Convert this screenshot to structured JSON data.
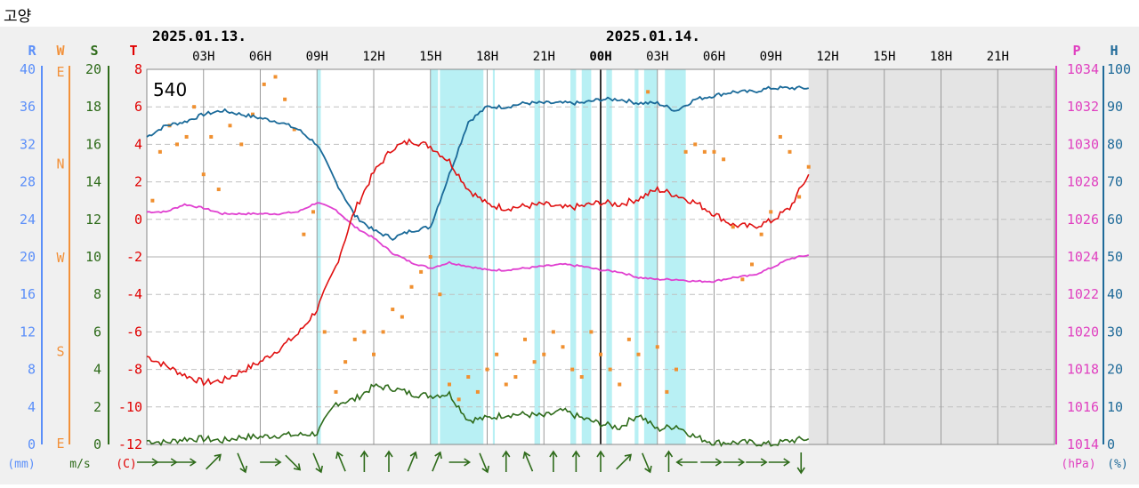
{
  "station": "고양",
  "plot_id": "540",
  "dates": [
    {
      "label": "2025.01.13.",
      "hour_index": 0
    },
    {
      "label": "2025.01.14.",
      "hour_index": 24
    }
  ],
  "axis_headers": {
    "R": {
      "letter": "R",
      "unit": "(mm)",
      "color": "#5b8ff9"
    },
    "W": {
      "letter": "W",
      "unit": "",
      "color": "#f2913a"
    },
    "S": {
      "letter": "S",
      "unit": "m/s",
      "color": "#2e6b1a"
    },
    "T": {
      "letter": "T",
      "unit": "(C)",
      "color": "#e00000"
    },
    "P": {
      "letter": "P",
      "unit": "(hPa)",
      "color": "#e040c0"
    },
    "H": {
      "letter": "H",
      "unit": "(%)",
      "color": "#1f6a99"
    }
  },
  "colors": {
    "temperature": "#e01010",
    "pressure": "#e040d0",
    "humidity": "#1a6a99",
    "wind_speed": "#2e6b1a",
    "wind_dir": "#f09030",
    "precip": "#b8f0f4",
    "grid": "#9a9a9a",
    "future": "#e4e4e4"
  },
  "chart_data": {
    "type": "line",
    "x_hour_ticks": [
      "03H",
      "06H",
      "09H",
      "12H",
      "15H",
      "18H",
      "21H",
      "00H",
      "03H",
      "06H",
      "09H",
      "12H",
      "15H",
      "18H",
      "21H"
    ],
    "x_range_hours": [
      0,
      48
    ],
    "data_end_hour": 35,
    "axes": {
      "R": {
        "ticks": [
          "40",
          "36",
          "32",
          "28",
          "24",
          "20",
          "16",
          "12",
          "8",
          "4",
          "0"
        ],
        "ylim": [
          0,
          40
        ]
      },
      "W": {
        "ticks": [
          "E",
          "N",
          "W",
          "S",
          "E"
        ]
      },
      "S": {
        "ticks": [
          "20",
          "18",
          "16",
          "14",
          "12",
          "10",
          "8",
          "6",
          "4",
          "2",
          "0"
        ],
        "ylim": [
          0,
          20
        ]
      },
      "T": {
        "ticks": [
          "8",
          "6",
          "4",
          "2",
          "0",
          "-2",
          "-4",
          "-6",
          "-8",
          "-10",
          "-12"
        ],
        "ylim": [
          -12,
          8
        ]
      },
      "P": {
        "ticks": [
          "1034",
          "1032",
          "1030",
          "1028",
          "1026",
          "1024",
          "1022",
          "1020",
          "1018",
          "1016",
          "1014"
        ],
        "ylim": [
          1014,
          1034
        ]
      },
      "H": {
        "ticks": [
          "100",
          "90",
          "80",
          "70",
          "60",
          "50",
          "40",
          "30",
          "20",
          "10",
          "0"
        ],
        "ylim": [
          0,
          100
        ]
      }
    },
    "series": [
      {
        "key": "temperature",
        "axis": "T",
        "x": [
          0,
          1,
          2,
          3,
          4,
          5,
          6,
          7,
          8,
          9,
          10,
          11,
          12,
          13,
          14,
          15,
          16,
          17,
          18,
          19,
          20,
          21,
          22,
          23,
          24,
          25,
          26,
          27,
          28,
          29,
          30,
          31,
          32,
          33,
          34,
          35
        ],
        "y": [
          -7.3,
          -7.8,
          -8.3,
          -8.7,
          -8.6,
          -8.1,
          -7.6,
          -6.9,
          -6.1,
          -4.8,
          -2.5,
          0.5,
          2.5,
          3.8,
          4.2,
          3.9,
          3.1,
          1.6,
          0.8,
          0.6,
          0.7,
          0.8,
          0.6,
          0.7,
          0.9,
          0.8,
          1.1,
          1.6,
          1.3,
          0.9,
          0.3,
          -0.3,
          -0.4,
          -0.1,
          0.6,
          2.4
        ]
      },
      {
        "key": "pressure",
        "axis": "P",
        "x": [
          0,
          1,
          2,
          3,
          4,
          5,
          6,
          7,
          8,
          9,
          10,
          11,
          12,
          13,
          14,
          15,
          16,
          17,
          18,
          19,
          20,
          21,
          22,
          23,
          24,
          25,
          26,
          27,
          28,
          29,
          30,
          31,
          32,
          33,
          34,
          35
        ],
        "y": [
          1026.4,
          1026.4,
          1026.8,
          1026.6,
          1026.3,
          1026.3,
          1026.3,
          1026.3,
          1026.4,
          1026.9,
          1026.5,
          1025.6,
          1025.0,
          1024.2,
          1023.7,
          1023.4,
          1023.7,
          1023.5,
          1023.3,
          1023.3,
          1023.4,
          1023.5,
          1023.6,
          1023.5,
          1023.3,
          1023.2,
          1022.9,
          1022.8,
          1022.8,
          1022.7,
          1022.7,
          1022.9,
          1023.0,
          1023.4,
          1023.9,
          1024.1
        ]
      },
      {
        "key": "humidity",
        "axis": "H",
        "x": [
          0,
          1,
          2,
          3,
          4,
          5,
          6,
          7,
          8,
          9,
          10,
          11,
          12,
          13,
          14,
          15,
          16,
          17,
          18,
          19,
          20,
          21,
          22,
          23,
          24,
          25,
          26,
          27,
          28,
          29,
          30,
          31,
          32,
          33,
          34,
          35
        ],
        "y": [
          82,
          85,
          86,
          88,
          89,
          88,
          87,
          86,
          84,
          80,
          70,
          61,
          57,
          55,
          57,
          58,
          72,
          86,
          90,
          90,
          91,
          91,
          91,
          91,
          92,
          92,
          91,
          91,
          89,
          92,
          93,
          94,
          94,
          95,
          95,
          95
        ]
      },
      {
        "key": "wind_speed",
        "axis": "S",
        "x": [
          0,
          1,
          2,
          3,
          4,
          5,
          6,
          7,
          8,
          9,
          10,
          11,
          12,
          13,
          14,
          15,
          16,
          17,
          18,
          19,
          20,
          21,
          22,
          23,
          24,
          25,
          26,
          27,
          28,
          29,
          30,
          31,
          32,
          33,
          34,
          35
        ],
        "y": [
          0.2,
          0.1,
          0.3,
          0.3,
          0.2,
          0.4,
          0.4,
          0.5,
          0.5,
          0.6,
          2.2,
          2.4,
          3.1,
          3.0,
          2.7,
          2.6,
          2.7,
          1.3,
          1.4,
          1.6,
          1.6,
          1.5,
          1.8,
          1.4,
          1.1,
          0.9,
          1.6,
          0.8,
          1.0,
          0.4,
          0.1,
          0.1,
          0.1,
          0.0,
          0.2,
          0.3
        ]
      },
      {
        "key": "wind_dir",
        "axis": "W",
        "style": "dots",
        "x": [
          0.3,
          0.7,
          1.2,
          1.6,
          2.1,
          2.5,
          3.0,
          3.4,
          3.8,
          4.4,
          5.0,
          5.6,
          6.2,
          6.8,
          7.3,
          7.8,
          8.3,
          8.8,
          9.4,
          10.0,
          10.5,
          11.0,
          11.5,
          12.0,
          12.5,
          13.0,
          13.5,
          14.0,
          14.5,
          15.0,
          15.5,
          16.0,
          16.5,
          17.0,
          17.5,
          18.0,
          18.5,
          19.0,
          19.5,
          20.0,
          20.5,
          21.0,
          21.5,
          22.0,
          22.5,
          23.0,
          23.5,
          24.0,
          24.5,
          25.0,
          25.5,
          26.0,
          26.5,
          27.0,
          27.5,
          28.0,
          28.5,
          29.0,
          29.5,
          30.0,
          30.5,
          31.0,
          31.5,
          32.0,
          32.5,
          33.0,
          33.5,
          34.0,
          34.5,
          35.0
        ],
        "y": [
          65,
          78,
          85,
          80,
          82,
          90,
          72,
          82,
          68,
          85,
          80,
          88,
          96,
          98,
          92,
          84,
          56,
          62,
          30,
          14,
          22,
          28,
          30,
          24,
          30,
          36,
          34,
          42,
          46,
          50,
          40,
          16,
          12,
          18,
          14,
          20,
          24,
          16,
          18,
          28,
          22,
          24,
          30,
          26,
          20,
          18,
          30,
          24,
          20,
          16,
          28,
          24,
          94,
          26,
          14,
          20,
          78,
          80,
          78,
          78,
          76,
          58,
          44,
          48,
          56,
          62,
          82,
          78,
          66,
          74
        ]
      }
    ],
    "precip_bands_hours": [
      [
        9.0,
        9.2
      ],
      [
        15.0,
        15.4
      ],
      [
        15.5,
        17.8
      ],
      [
        18.3,
        18.4
      ],
      [
        20.5,
        20.8
      ],
      [
        22.4,
        22.7
      ],
      [
        23.0,
        23.5
      ],
      [
        24.3,
        24.6
      ],
      [
        25.8,
        26.0
      ],
      [
        26.3,
        27.0
      ],
      [
        27.4,
        28.5
      ]
    ],
    "wind_arrows": [
      {
        "hour": 0.0,
        "dir": "E"
      },
      {
        "hour": 1.0,
        "dir": "E"
      },
      {
        "hour": 2.0,
        "dir": "E"
      },
      {
        "hour": 3.5,
        "dir": "NE"
      },
      {
        "hour": 5.0,
        "dir": "SSE"
      },
      {
        "hour": 6.5,
        "dir": "E"
      },
      {
        "hour": 7.7,
        "dir": "SE"
      },
      {
        "hour": 9.0,
        "dir": "SSE"
      },
      {
        "hour": 10.3,
        "dir": "NNW"
      },
      {
        "hour": 11.5,
        "dir": "N"
      },
      {
        "hour": 12.8,
        "dir": "N"
      },
      {
        "hour": 14.0,
        "dir": "NNE"
      },
      {
        "hour": 15.3,
        "dir": "NNE"
      },
      {
        "hour": 16.5,
        "dir": "E"
      },
      {
        "hour": 17.8,
        "dir": "SSE"
      },
      {
        "hour": 19.0,
        "dir": "N"
      },
      {
        "hour": 20.2,
        "dir": "NNW"
      },
      {
        "hour": 21.5,
        "dir": "N"
      },
      {
        "hour": 22.7,
        "dir": "N"
      },
      {
        "hour": 24.0,
        "dir": "N"
      },
      {
        "hour": 25.2,
        "dir": "NE"
      },
      {
        "hour": 26.4,
        "dir": "SSE"
      },
      {
        "hour": 27.6,
        "dir": "N"
      },
      {
        "hour": 28.6,
        "dir": "W"
      },
      {
        "hour": 29.8,
        "dir": "E"
      },
      {
        "hour": 31.0,
        "dir": "E"
      },
      {
        "hour": 32.2,
        "dir": "E"
      },
      {
        "hour": 33.4,
        "dir": "E"
      },
      {
        "hour": 34.6,
        "dir": "S"
      }
    ]
  }
}
